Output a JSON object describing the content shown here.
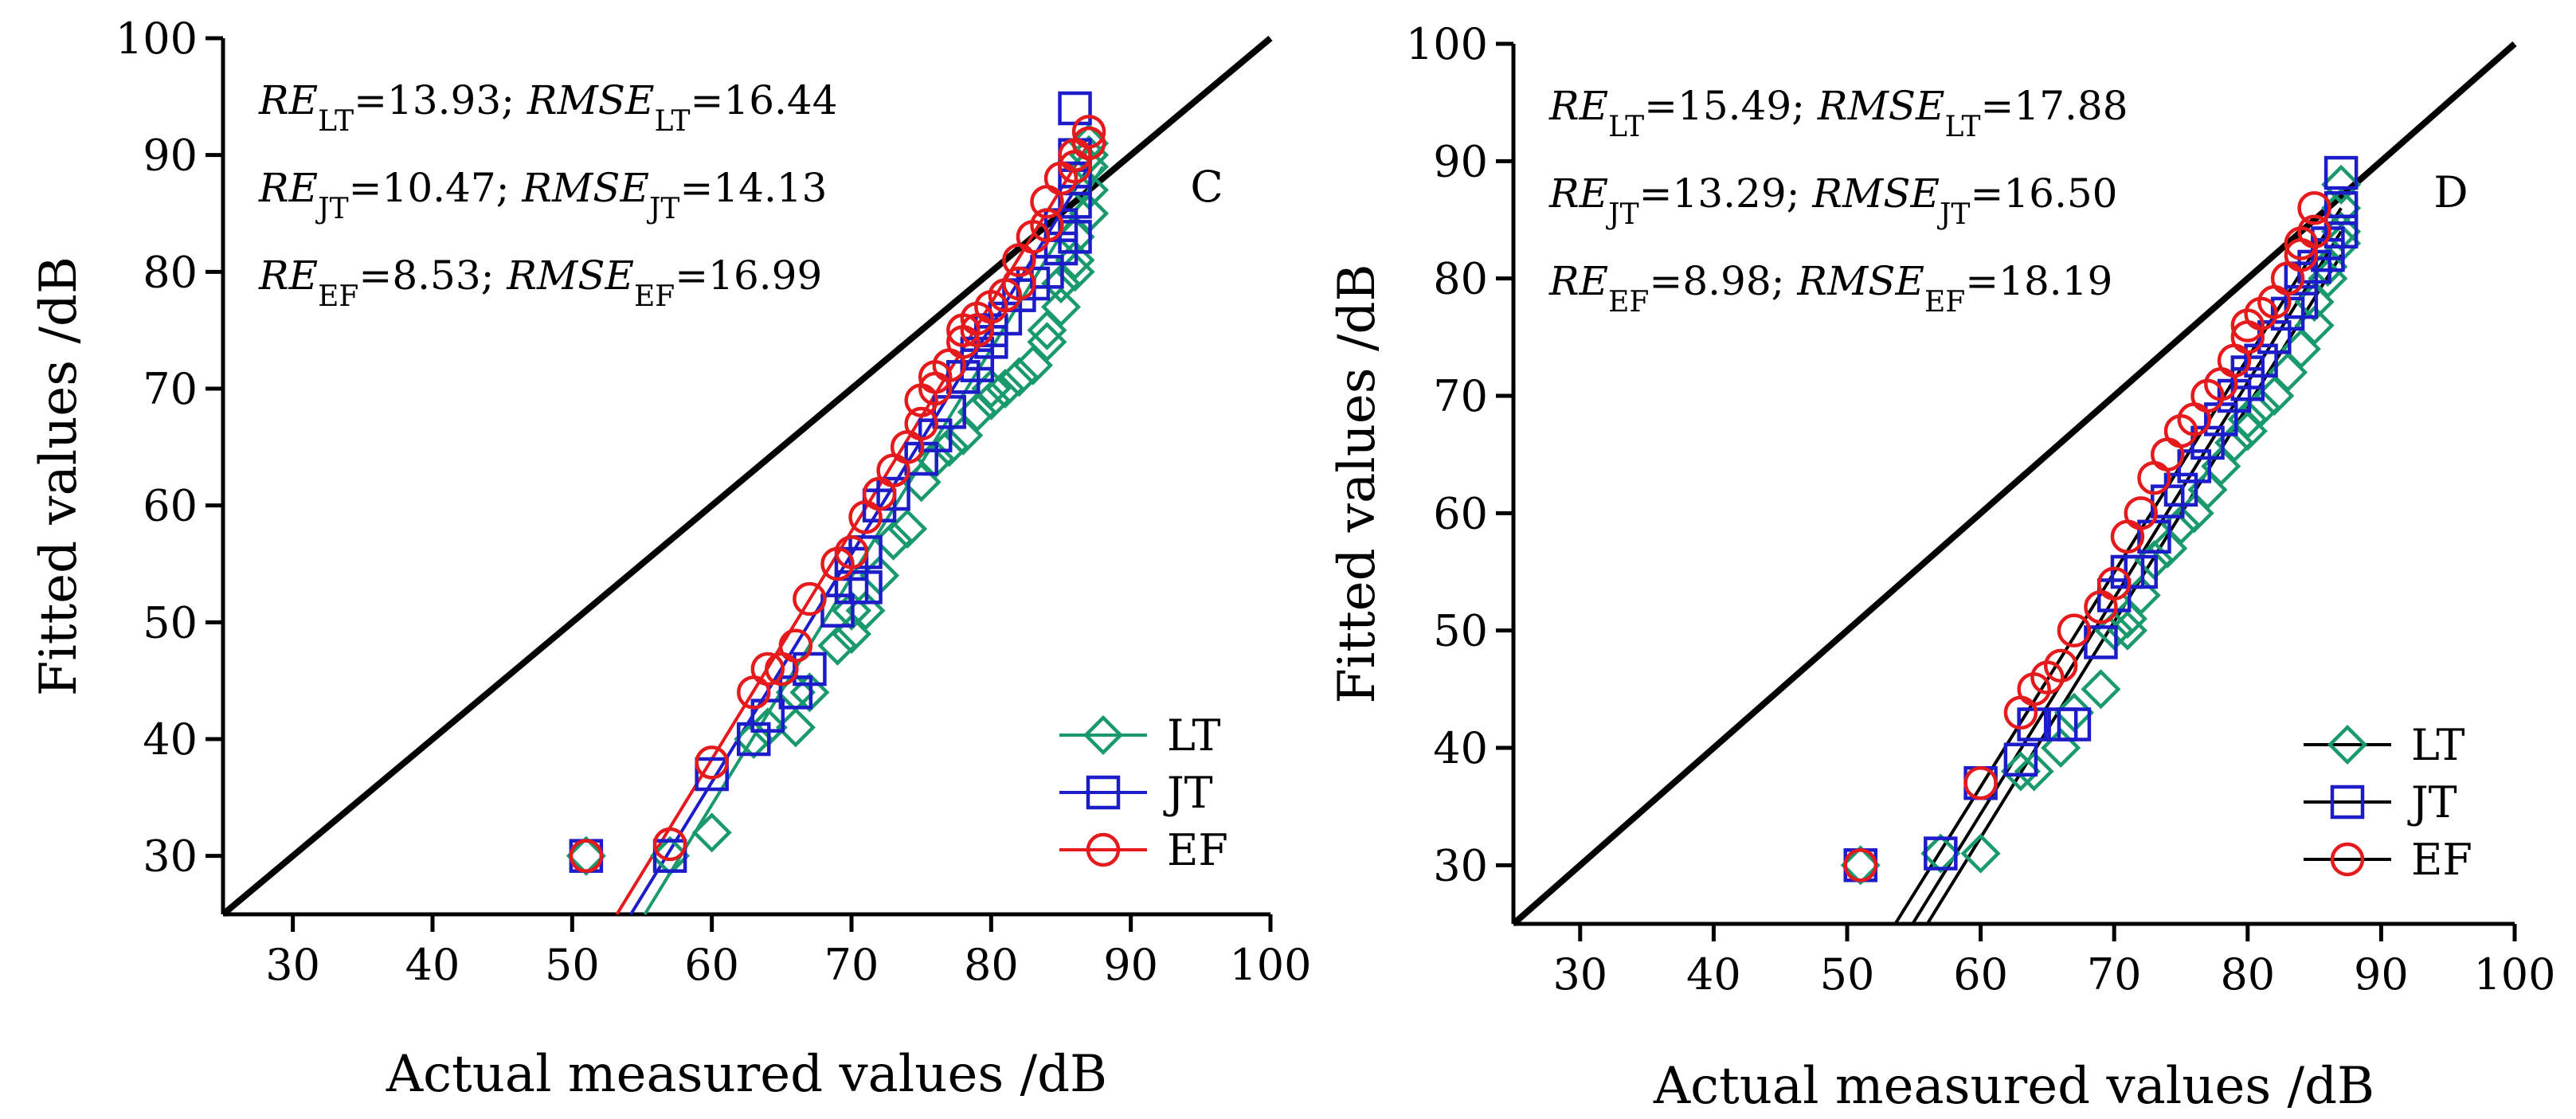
{
  "chart_data": [
    {
      "type": "scatter",
      "panel_label": "C",
      "xlabel": "Actual measured values /dB",
      "ylabel": "Fitted values /dB",
      "xlim": [
        25,
        100
      ],
      "ylim": [
        25,
        100
      ],
      "xticks": [
        "30",
        "40",
        "50",
        "60",
        "70",
        "80",
        "90",
        "100"
      ],
      "yticks": [
        "30",
        "40",
        "50",
        "60",
        "70",
        "80",
        "90",
        "100"
      ],
      "stats": [
        {
          "re_label": "RE",
          "re_sub": "LT",
          "re_value": "=13.93; ",
          "rmse_label": "RMSE",
          "rmse_sub": "LT",
          "rmse_value": "=16.44"
        },
        {
          "re_label": "RE",
          "re_sub": "JT",
          "re_value": "=10.47; ",
          "rmse_label": "RMSE",
          "rmse_sub": "JT",
          "rmse_value": "=14.13"
        },
        {
          "re_label": "RE",
          "re_sub": "EF",
          "re_value": "=8.53; ",
          "rmse_label": "RMSE",
          "rmse_sub": "EF",
          "rmse_value": "=16.99"
        }
      ],
      "legend_position": "bottom-right",
      "legend_line_colored": true,
      "reference_line": [
        [
          25,
          25
        ],
        [
          100,
          100
        ]
      ],
      "series": [
        {
          "name": "LT",
          "color": "#1a9a6c",
          "marker": "diamond",
          "fit": [
            [
              55.2,
              25
            ],
            [
              88,
              89
            ]
          ],
          "points": [
            [
              51,
              30
            ],
            [
              60,
              32
            ],
            [
              57,
              30
            ],
            [
              63,
              40
            ],
            [
              64,
              41
            ],
            [
              66,
              41
            ],
            [
              66,
              44
            ],
            [
              67,
              44
            ],
            [
              69,
              48
            ],
            [
              70,
              49
            ],
            [
              70,
              51
            ],
            [
              71,
              51
            ],
            [
              72,
              54
            ],
            [
              73,
              57
            ],
            [
              74,
              58
            ],
            [
              75,
              62
            ],
            [
              76,
              64
            ],
            [
              77,
              65
            ],
            [
              78,
              66
            ],
            [
              79,
              68
            ],
            [
              80,
              69
            ],
            [
              80,
              70
            ],
            [
              81,
              70
            ],
            [
              82,
              71
            ],
            [
              83,
              72
            ],
            [
              84,
              74
            ],
            [
              84,
              75
            ],
            [
              85,
              77
            ],
            [
              85,
              79
            ],
            [
              86,
              80
            ],
            [
              86,
              81
            ],
            [
              86,
              83
            ],
            [
              87,
              85
            ],
            [
              87,
              87
            ],
            [
              87,
              89
            ],
            [
              87,
              90
            ],
            [
              87,
              91
            ]
          ]
        },
        {
          "name": "JT",
          "color": "#1c1cc8",
          "marker": "square",
          "fit": [
            [
              54.2,
              25
            ],
            [
              87,
              89
            ]
          ],
          "points": [
            [
              51,
              30
            ],
            [
              57,
              30
            ],
            [
              60,
              37
            ],
            [
              63,
              40
            ],
            [
              64,
              42
            ],
            [
              66,
              44
            ],
            [
              67,
              46
            ],
            [
              69,
              51
            ],
            [
              70,
              53
            ],
            [
              70,
              55
            ],
            [
              71,
              53
            ],
            [
              71,
              56
            ],
            [
              72,
              60
            ],
            [
              73,
              61
            ],
            [
              75,
              64
            ],
            [
              76,
              66
            ],
            [
              77,
              68
            ],
            [
              78,
              71
            ],
            [
              79,
              72
            ],
            [
              79,
              73
            ],
            [
              80,
              74
            ],
            [
              80,
              75
            ],
            [
              81,
              76
            ],
            [
              82,
              78
            ],
            [
              83,
              79
            ],
            [
              84,
              80
            ],
            [
              85,
              82
            ],
            [
              85,
              84
            ],
            [
              86,
              83
            ],
            [
              86,
              86
            ],
            [
              86,
              88
            ],
            [
              86,
              90
            ],
            [
              86,
              94
            ]
          ]
        },
        {
          "name": "EF",
          "color": "#e41a1c",
          "marker": "circle",
          "fit": [
            [
              53.2,
              25
            ],
            [
              87,
              91
            ]
          ],
          "points": [
            [
              51,
              30
            ],
            [
              57,
              31
            ],
            [
              60,
              38
            ],
            [
              63,
              44
            ],
            [
              64,
              46
            ],
            [
              65,
              46
            ],
            [
              66,
              48
            ],
            [
              67,
              52
            ],
            [
              69,
              55
            ],
            [
              70,
              56
            ],
            [
              71,
              59
            ],
            [
              72,
              61
            ],
            [
              73,
              63
            ],
            [
              74,
              65
            ],
            [
              75,
              67
            ],
            [
              75,
              69
            ],
            [
              76,
              70
            ],
            [
              76,
              71
            ],
            [
              77,
              72
            ],
            [
              78,
              74
            ],
            [
              78,
              75
            ],
            [
              79,
              75
            ],
            [
              79,
              76
            ],
            [
              80,
              77
            ],
            [
              81,
              78
            ],
            [
              82,
              79
            ],
            [
              82,
              81
            ],
            [
              83,
              83
            ],
            [
              84,
              84
            ],
            [
              84,
              86
            ],
            [
              85,
              88
            ],
            [
              86,
              89
            ],
            [
              86,
              90
            ],
            [
              87,
              91
            ],
            [
              87,
              92
            ]
          ]
        }
      ]
    },
    {
      "type": "scatter",
      "panel_label": "D",
      "xlabel": "Actual measured values /dB",
      "ylabel": "Fitted values /dB",
      "xlim": [
        25,
        100
      ],
      "ylim": [
        25,
        100
      ],
      "xticks": [
        "30",
        "40",
        "50",
        "60",
        "70",
        "80",
        "90",
        "100"
      ],
      "yticks": [
        "30",
        "40",
        "50",
        "60",
        "70",
        "80",
        "90",
        "100"
      ],
      "stats": [
        {
          "re_label": "RE",
          "re_sub": "LT",
          "re_value": "=15.49; ",
          "rmse_label": "RMSE",
          "rmse_sub": "LT",
          "rmse_value": "=17.88"
        },
        {
          "re_label": "RE",
          "re_sub": "JT",
          "re_value": "=13.29; ",
          "rmse_label": "RMSE",
          "rmse_sub": "JT",
          "rmse_value": "=16.50"
        },
        {
          "re_label": "RE",
          "re_sub": "EF",
          "re_value": "=8.98; ",
          "rmse_label": "RMSE",
          "rmse_sub": "EF",
          "rmse_value": "=18.19"
        }
      ],
      "legend_position": "bottom-right",
      "legend_line_colored": false,
      "reference_line": [
        [
          25,
          25
        ],
        [
          100,
          100
        ]
      ],
      "series": [
        {
          "name": "LT",
          "color": "#1a9a6c",
          "marker": "diamond",
          "fit": [
            [
              56,
              25
            ],
            [
              87,
              82
            ]
          ],
          "points": [
            [
              51,
              30
            ],
            [
              60,
              31
            ],
            [
              57,
              31
            ],
            [
              63,
              38
            ],
            [
              64,
              38
            ],
            [
              66,
              40
            ],
            [
              67,
              43
            ],
            [
              69,
              45
            ],
            [
              70,
              50
            ],
            [
              71,
              50
            ],
            [
              71,
              51
            ],
            [
              72,
              53
            ],
            [
              73,
              56
            ],
            [
              74,
              57
            ],
            [
              75,
              59
            ],
            [
              76,
              60
            ],
            [
              77,
              62
            ],
            [
              78,
              64
            ],
            [
              79,
              66
            ],
            [
              80,
              67
            ],
            [
              80,
              68
            ],
            [
              81,
              69
            ],
            [
              82,
              70
            ],
            [
              83,
              72
            ],
            [
              84,
              74
            ],
            [
              85,
              76
            ],
            [
              85,
              78
            ],
            [
              86,
              80
            ],
            [
              86,
              81
            ],
            [
              87,
              83
            ],
            [
              87,
              84
            ],
            [
              87,
              86
            ],
            [
              87,
              88
            ]
          ]
        },
        {
          "name": "JT",
          "color": "#1c1cc8",
          "marker": "square",
          "fit": [
            [
              54.9,
              25
            ],
            [
              87,
              84
            ]
          ],
          "points": [
            [
              51,
              30
            ],
            [
              57,
              31
            ],
            [
              60,
              37
            ],
            [
              63,
              39
            ],
            [
              64,
              42
            ],
            [
              66,
              42
            ],
            [
              67,
              42
            ],
            [
              69,
              49
            ],
            [
              70,
              53
            ],
            [
              71,
              55
            ],
            [
              72,
              55
            ],
            [
              73,
              58
            ],
            [
              74,
              61
            ],
            [
              75,
              62
            ],
            [
              76,
              64
            ],
            [
              77,
              66
            ],
            [
              78,
              68
            ],
            [
              79,
              70
            ],
            [
              80,
              71
            ],
            [
              80,
              72
            ],
            [
              81,
              73
            ],
            [
              82,
              75
            ],
            [
              83,
              77
            ],
            [
              84,
              78
            ],
            [
              84,
              80
            ],
            [
              85,
              81
            ],
            [
              86,
              82
            ],
            [
              86,
              83
            ],
            [
              87,
              84
            ],
            [
              87,
              86
            ],
            [
              87,
              89
            ]
          ]
        },
        {
          "name": "EF",
          "color": "#e41a1c",
          "marker": "circle",
          "fit": [
            [
              53.6,
              25
            ],
            [
              87,
              86
            ]
          ],
          "points": [
            [
              51,
              30
            ],
            [
              60,
              37
            ],
            [
              63,
              43
            ],
            [
              64,
              45
            ],
            [
              65,
              46
            ],
            [
              66,
              47
            ],
            [
              67,
              50
            ],
            [
              69,
              52
            ],
            [
              70,
              54
            ],
            [
              71,
              58
            ],
            [
              72,
              60
            ],
            [
              73,
              63
            ],
            [
              74,
              65
            ],
            [
              75,
              67
            ],
            [
              76,
              68
            ],
            [
              77,
              70
            ],
            [
              78,
              71
            ],
            [
              79,
              73
            ],
            [
              80,
              75
            ],
            [
              80,
              76
            ],
            [
              81,
              77
            ],
            [
              82,
              78
            ],
            [
              83,
              80
            ],
            [
              84,
              82
            ],
            [
              84,
              83
            ],
            [
              85,
              84
            ],
            [
              85,
              86
            ]
          ]
        }
      ]
    }
  ]
}
